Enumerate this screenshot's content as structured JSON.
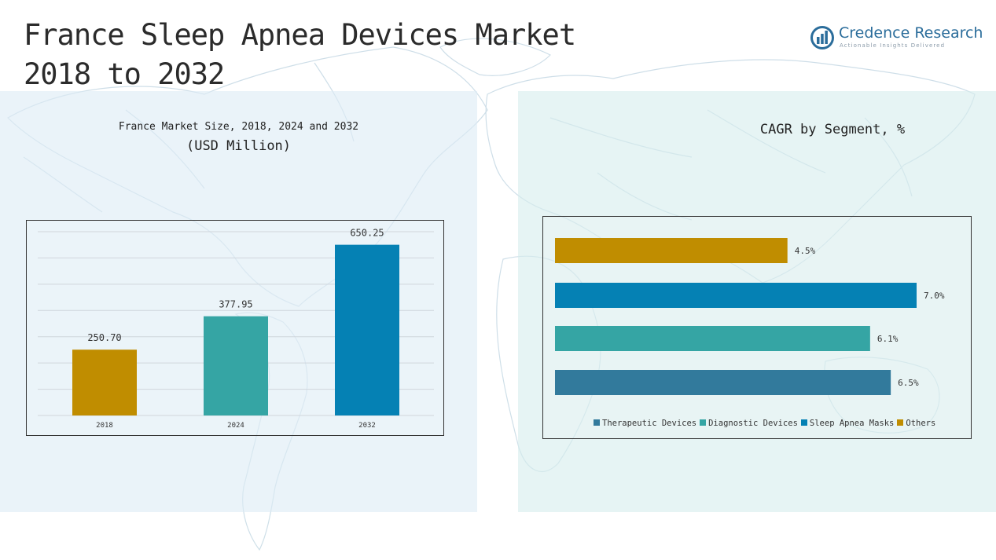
{
  "page": {
    "title_line1": "France Sleep Apnea Devices Market",
    "title_line2": "2018 to 2032",
    "logo": {
      "brand": "Credence Research",
      "tagline": "Actionable Insights Delivered"
    }
  },
  "left_panel": {
    "title_line1": "France Market Size, 2018, 2024 and 2032",
    "title_line2": "(USD Million)"
  },
  "right_panel": {
    "title": "CAGR by Segment, %"
  },
  "chart_data": [
    {
      "type": "bar",
      "title": "France Market Size, 2018, 2024 and 2032 (USD Million)",
      "categories": [
        "2018",
        "2024",
        "2032"
      ],
      "values": [
        250.7,
        377.95,
        650.25
      ],
      "value_labels": [
        "250.70",
        "377.95",
        "650.25"
      ],
      "colors": [
        "#c08d00",
        "#35a5a4",
        "#0581b4"
      ],
      "ylim": [
        0,
        700
      ],
      "grid": true,
      "xlabel": "",
      "ylabel": ""
    },
    {
      "type": "bar",
      "orientation": "horizontal",
      "title": "CAGR by Segment, %",
      "series": [
        {
          "name": "Others",
          "value": 4.5,
          "label": "4.5%",
          "color": "#c08d00"
        },
        {
          "name": "Sleep Apnea Masks",
          "value": 7.0,
          "label": "7.0%",
          "color": "#0581b4"
        },
        {
          "name": "Diagnostic Devices",
          "value": 6.1,
          "label": "6.1%",
          "color": "#35a5a4"
        },
        {
          "name": "Therapeutic Devices",
          "value": 6.5,
          "label": "6.5%",
          "color": "#327a9c"
        }
      ],
      "xlim": [
        0,
        7.6
      ],
      "legend": [
        "Therapeutic Devices",
        "Diagnostic Devices",
        "Sleep Apnea Masks",
        "Others"
      ],
      "legend_position": "bottom"
    }
  ]
}
